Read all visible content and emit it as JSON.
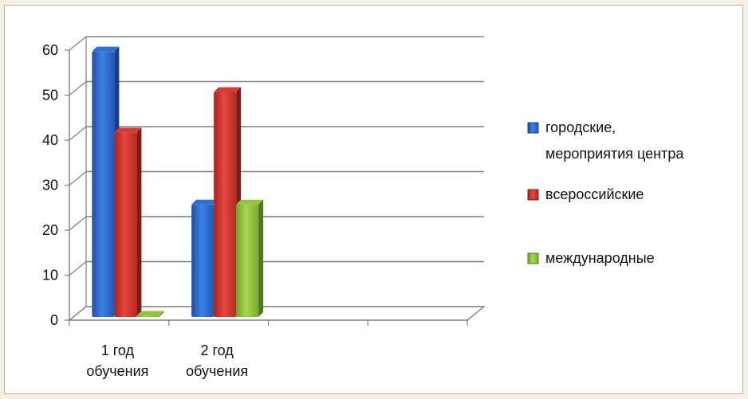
{
  "chart_data": {
    "type": "bar",
    "categories": [
      [
        "1 год",
        "обучения"
      ],
      [
        "2 год",
        "обучения"
      ],
      [
        "",
        ""
      ],
      [
        "",
        ""
      ]
    ],
    "series": [
      {
        "name": "городские, мероприятия центра",
        "legend_lines": [
          "городские,",
          "мероприятия центра"
        ],
        "color": "#2f6fd4",
        "values": [
          59,
          25,
          null,
          null
        ]
      },
      {
        "name": "всероссийские",
        "legend_lines": [
          "всероссийские"
        ],
        "color": "#d23a33",
        "values": [
          41,
          50,
          null,
          null
        ]
      },
      {
        "name": "международные",
        "legend_lines": [
          "международные"
        ],
        "color": "#8fc63c",
        "values": [
          0,
          25,
          null,
          null
        ]
      }
    ],
    "y_ticks": [
      "0",
      "10",
      "20",
      "30",
      "40",
      "50",
      "60"
    ],
    "ylim": [
      0,
      60
    ],
    "grid": true,
    "legend_position": "right",
    "style": "3d-column"
  }
}
